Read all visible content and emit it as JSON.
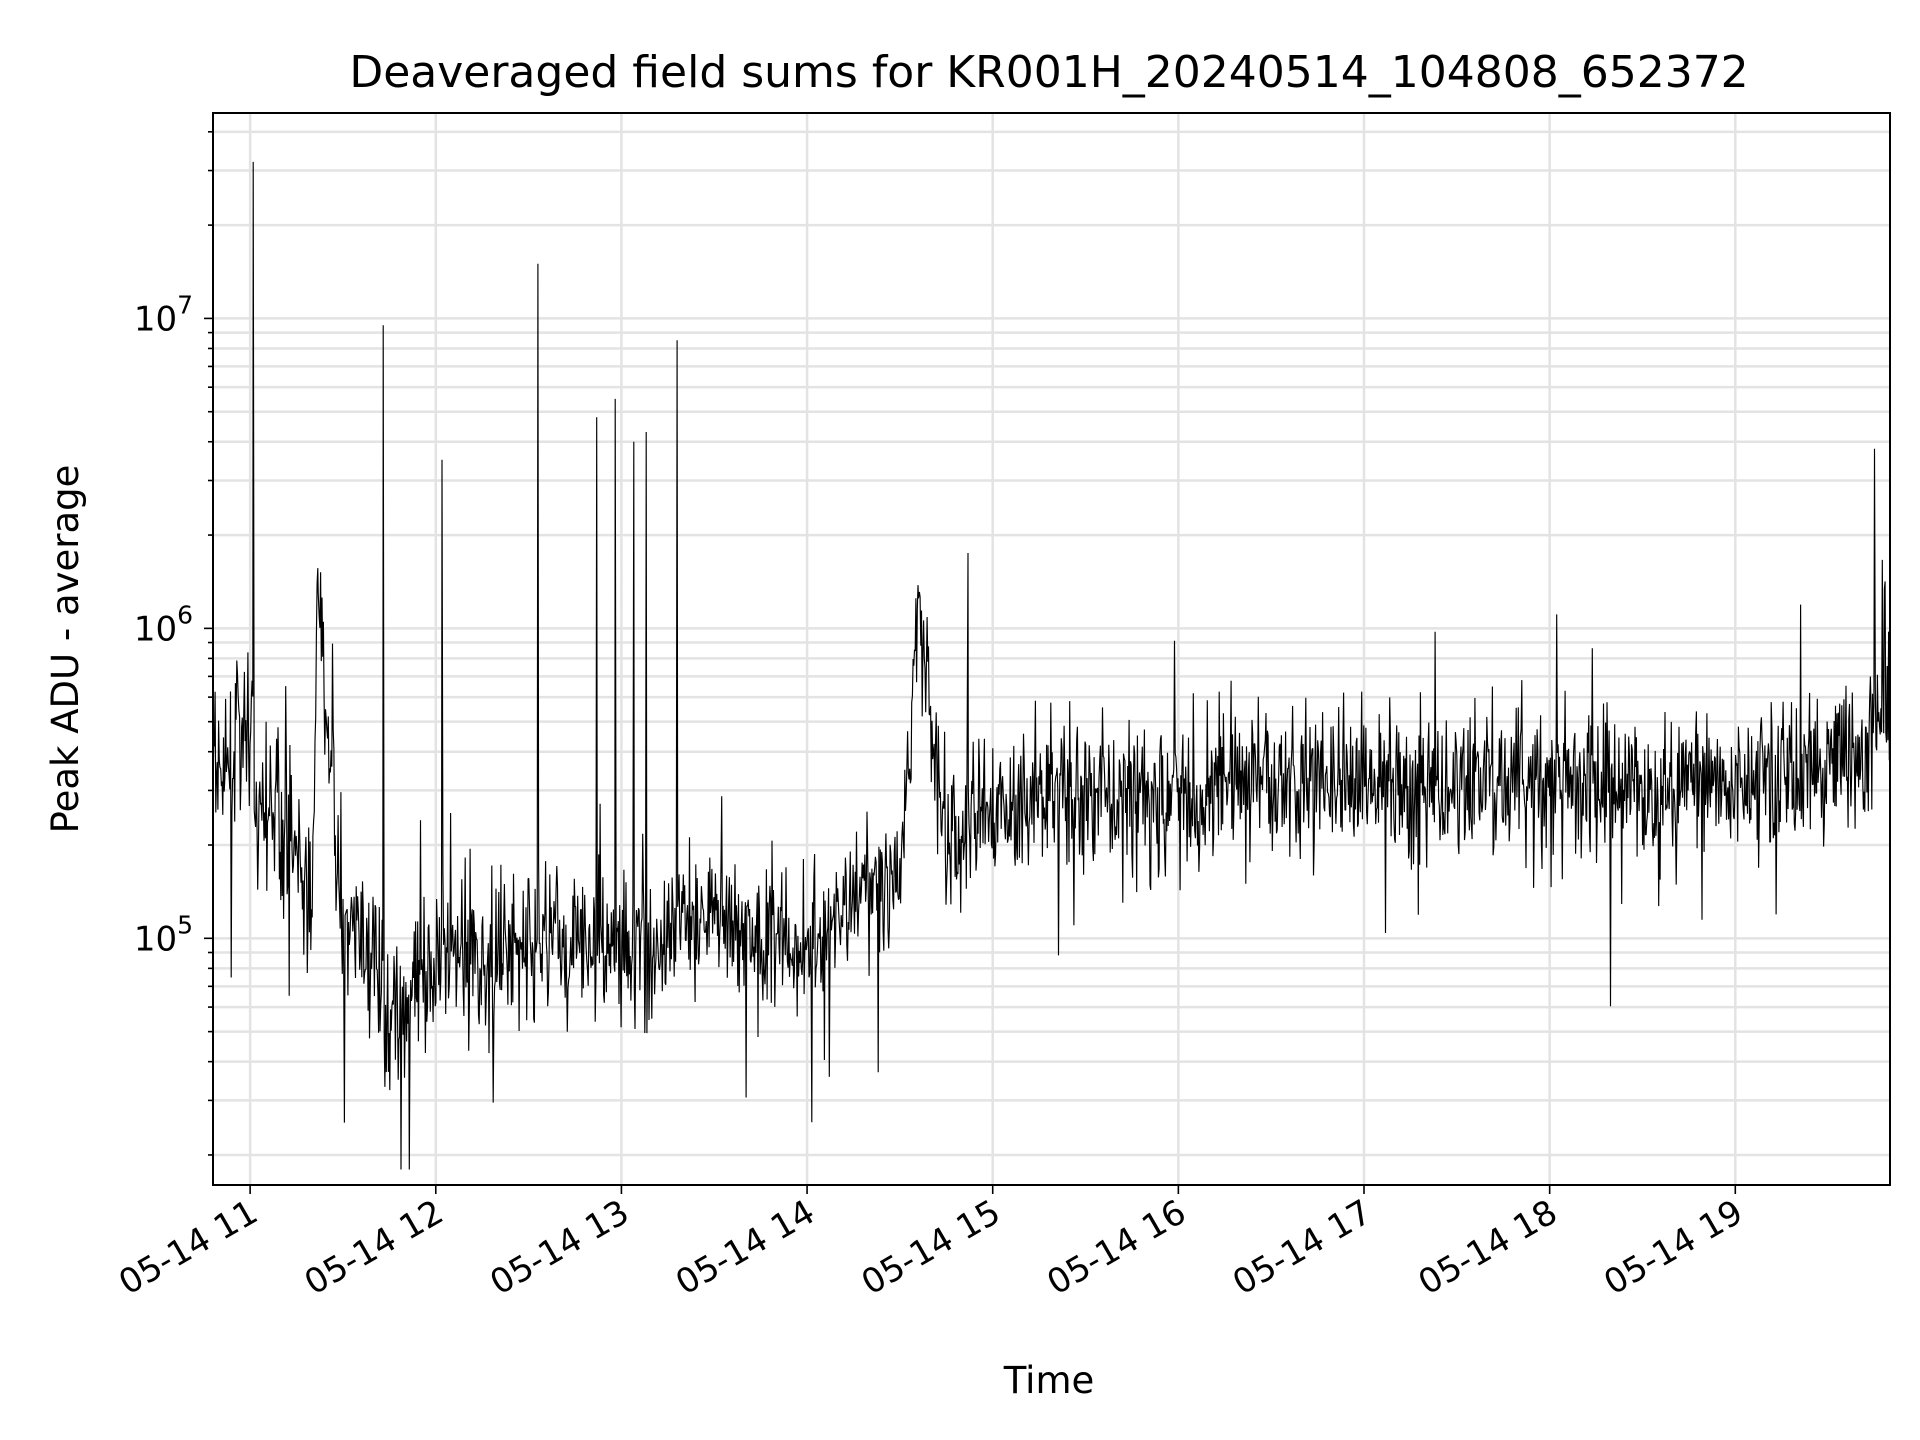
{
  "chart_data": {
    "type": "line",
    "title": "Deaveraged field sums for KR001H_20240514_104808_652372",
    "xlabel": "Time",
    "ylabel": "Peak ADU - average",
    "y_scale": "log",
    "grid": true,
    "x_tick_labels": [
      "05-14 11",
      "05-14 12",
      "05-14 13",
      "05-14 14",
      "05-14 15",
      "05-14 16",
      "05-14 17",
      "05-14 18",
      "05-14 19"
    ],
    "x_tick_rotation_deg": 30,
    "y_tick_labels": [
      {
        "base": "10",
        "exponent": "5",
        "value": 100000
      },
      {
        "base": "10",
        "exponent": "6",
        "value": 1000000
      },
      {
        "base": "10",
        "exponent": "7",
        "value": 10000000
      }
    ],
    "xlim": [
      "2024-05-14 10:48",
      "2024-05-14 19:50"
    ],
    "ylim": [
      16000,
      46000000
    ],
    "colors": {
      "line": "#000000",
      "grid": "#e3e3e3",
      "background": "#ffffff"
    },
    "series": [
      {
        "x": [
          "2024-05-14 10:48",
          "2024-05-14 10:55",
          "2024-05-14 11:00",
          "2024-05-14 11:01",
          "2024-05-14 11:08",
          "2024-05-14 11:15",
          "2024-05-14 11:20",
          "2024-05-14 11:22",
          "2024-05-14 11:30",
          "2024-05-14 11:36",
          "2024-05-14 11:42",
          "2024-05-14 11:43",
          "2024-05-14 11:50",
          "2024-05-14 11:56",
          "2024-05-14 12:00",
          "2024-05-14 12:02",
          "2024-05-14 12:10",
          "2024-05-14 12:20",
          "2024-05-14 12:30",
          "2024-05-14 12:33",
          "2024-05-14 12:40",
          "2024-05-14 12:50",
          "2024-05-14 12:52",
          "2024-05-14 12:58",
          "2024-05-14 13:04",
          "2024-05-14 13:08",
          "2024-05-14 13:15",
          "2024-05-14 13:18",
          "2024-05-14 13:30",
          "2024-05-14 13:45",
          "2024-05-14 14:00",
          "2024-05-14 14:15",
          "2024-05-14 14:30",
          "2024-05-14 14:36",
          "2024-05-14 14:45",
          "2024-05-14 14:52",
          "2024-05-14 15:00",
          "2024-05-14 15:15",
          "2024-05-14 15:30",
          "2024-05-14 15:45",
          "2024-05-14 16:00",
          "2024-05-14 16:15",
          "2024-05-14 16:30",
          "2024-05-14 16:45",
          "2024-05-14 17:00",
          "2024-05-14 17:15",
          "2024-05-14 17:30",
          "2024-05-14 17:45",
          "2024-05-14 18:00",
          "2024-05-14 18:15",
          "2024-05-14 18:30",
          "2024-05-14 18:45",
          "2024-05-14 19:00",
          "2024-05-14 19:15",
          "2024-05-14 19:30",
          "2024-05-14 19:42",
          "2024-05-14 19:45",
          "2024-05-14 19:50"
        ],
        "y": [
          320000,
          400000,
          450000,
          32000000,
          250000,
          180000,
          130000,
          1300000,
          110000,
          95000,
          75000,
          9500000,
          60000,
          70000,
          85000,
          3500000,
          90000,
          80000,
          95000,
          15000000,
          100000,
          95000,
          4800000,
          5500000,
          4000000,
          4300000,
          85000,
          8500000,
          120000,
          100000,
          95000,
          130000,
          160000,
          1250000,
          200000,
          1750000,
          250000,
          280000,
          300000,
          290000,
          300000,
          310000,
          320000,
          330000,
          320000,
          310000,
          300000,
          310000,
          320000,
          310000,
          300000,
          320000,
          330000,
          340000,
          350000,
          420000,
          3800000,
          600000
        ]
      }
    ]
  }
}
